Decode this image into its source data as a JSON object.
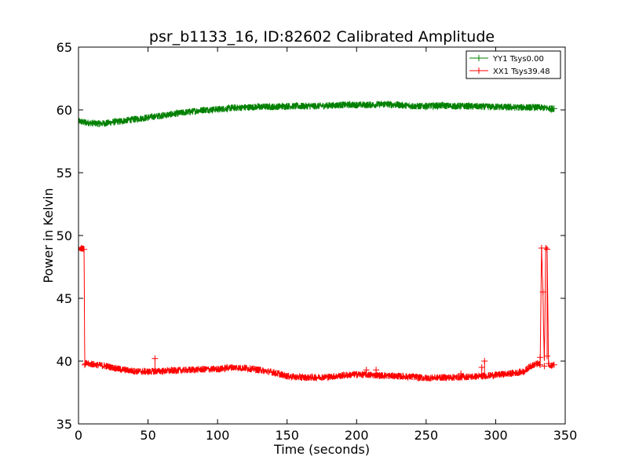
{
  "chart_data": {
    "type": "line",
    "title": "psr_b1133_16, ID:82602 Calibrated Amplitude",
    "xlabel": "Time (seconds)",
    "ylabel": "Power in Kelvin",
    "xlim": [
      0,
      350
    ],
    "ylim": [
      35,
      65
    ],
    "xticks": [
      0,
      50,
      100,
      150,
      200,
      250,
      300,
      350
    ],
    "yticks": [
      35,
      40,
      45,
      50,
      55,
      60,
      65
    ],
    "grid": false,
    "legend_position": "top-right",
    "series": [
      {
        "name": "YY1 Tsys0.00",
        "color": "#008000",
        "marker": "+",
        "x": [
          0,
          5,
          10,
          15,
          20,
          30,
          40,
          50,
          60,
          70,
          80,
          90,
          100,
          110,
          120,
          130,
          140,
          150,
          160,
          170,
          180,
          190,
          200,
          210,
          220,
          230,
          240,
          250,
          260,
          270,
          280,
          290,
          300,
          310,
          320,
          330,
          340,
          342
        ],
        "y": [
          59.1,
          59.0,
          58.95,
          58.9,
          58.95,
          59.1,
          59.25,
          59.4,
          59.55,
          59.7,
          59.85,
          60.0,
          60.05,
          60.15,
          60.2,
          60.25,
          60.25,
          60.3,
          60.3,
          60.3,
          60.35,
          60.4,
          60.4,
          60.4,
          60.45,
          60.4,
          60.3,
          60.3,
          60.35,
          60.3,
          60.3,
          60.25,
          60.25,
          60.2,
          60.2,
          60.2,
          60.1,
          60.1
        ]
      },
      {
        "name": "XX1 Tsys39.48",
        "color": "#ff0000",
        "marker": "+",
        "x": [
          0,
          2,
          4,
          4.5,
          5,
          10,
          20,
          30,
          40,
          50,
          55,
          60,
          70,
          80,
          90,
          100,
          110,
          120,
          130,
          140,
          150,
          160,
          170,
          180,
          190,
          200,
          210,
          220,
          230,
          240,
          250,
          260,
          270,
          280,
          290,
          300,
          310,
          320,
          325,
          330,
          332,
          333,
          334,
          335,
          336,
          337,
          338,
          340,
          342
        ],
        "y": [
          49.0,
          49.0,
          48.9,
          39.7,
          39.8,
          39.75,
          39.6,
          39.35,
          39.2,
          39.15,
          39.2,
          39.2,
          39.25,
          39.3,
          39.35,
          39.35,
          39.5,
          39.45,
          39.3,
          39.1,
          38.8,
          38.7,
          38.7,
          38.75,
          38.85,
          38.95,
          38.9,
          38.85,
          38.8,
          38.75,
          38.65,
          38.7,
          38.7,
          38.75,
          38.8,
          38.9,
          39.0,
          39.15,
          39.6,
          39.8,
          39.7,
          49.0,
          45.5,
          39.6,
          49.0,
          48.9,
          39.8,
          39.65,
          39.7
        ]
      }
    ],
    "outlier_markers": [
      {
        "series": 1,
        "x": 55,
        "y": 40.2
      },
      {
        "series": 1,
        "x": 207,
        "y": 39.3
      },
      {
        "series": 1,
        "x": 214,
        "y": 39.3
      },
      {
        "series": 1,
        "x": 275,
        "y": 39.0
      },
      {
        "series": 1,
        "x": 290,
        "y": 39.5
      },
      {
        "series": 1,
        "x": 292,
        "y": 40.0
      },
      {
        "series": 1,
        "x": 332,
        "y": 40.3
      },
      {
        "series": 1,
        "x": 337,
        "y": 40.4
      }
    ]
  }
}
